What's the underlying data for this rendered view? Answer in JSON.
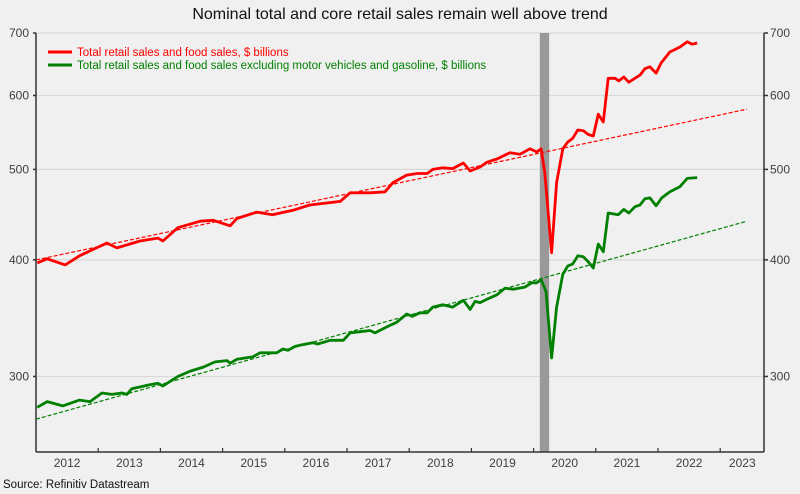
{
  "chart_data": {
    "type": "line",
    "title": "Nominal total and core retail sales remain well above trend",
    "source": "Source: Refinitiv Datastream",
    "y_scale": "log",
    "ylim": [
      249,
      700
    ],
    "y_ticks": [
      300,
      400,
      500,
      600,
      700
    ],
    "y_tick_labels": [
      "300",
      "400",
      "500",
      "600",
      "700"
    ],
    "y_axes": [
      "left",
      "right"
    ],
    "xlim": [
      2012.0,
      2023.71
    ],
    "x_tick_labels": [
      "2012",
      "2013",
      "2014",
      "2015",
      "2016",
      "2017",
      "2018",
      "2019",
      "2020",
      "2021",
      "2022",
      "2023"
    ],
    "grid": "horizontal",
    "legend_position": "top-left",
    "recession_shading": {
      "start": 2020.1,
      "end": 2020.25,
      "color": "#999999"
    },
    "series": [
      {
        "name": "Total retail sales and food sales, $ billions",
        "color": "#ff0000",
        "style": "solid",
        "x": [
          2012.02,
          2012.18,
          2012.47,
          2012.7,
          2013.14,
          2013.3,
          2013.67,
          2013.96,
          2014.04,
          2014.28,
          2014.64,
          2014.85,
          2015.12,
          2015.23,
          2015.55,
          2015.8,
          2016.13,
          2016.4,
          2016.89,
          2017.05,
          2017.37,
          2017.61,
          2017.74,
          2017.96,
          2018.13,
          2018.29,
          2018.38,
          2018.54,
          2018.7,
          2018.87,
          2018.98,
          2019.14,
          2019.25,
          2019.41,
          2019.62,
          2019.78,
          2019.94,
          2020.05,
          2020.12,
          2020.18,
          2020.29,
          2020.37,
          2020.47,
          2020.55,
          2020.63,
          2020.71,
          2020.8,
          2020.88,
          2020.96,
          2021.04,
          2021.12,
          2021.2,
          2021.31,
          2021.37,
          2021.45,
          2021.53,
          2021.71,
          2021.79,
          2021.87,
          2021.97,
          2022.05,
          2022.19,
          2022.35,
          2022.47,
          2022.55,
          2022.63
        ],
        "values": [
          397,
          401,
          395,
          404,
          417,
          412,
          419,
          422,
          419,
          433,
          440,
          441,
          435,
          443,
          450,
          447,
          452,
          458,
          462,
          472,
          472,
          473,
          484,
          493,
          495,
          495,
          500,
          502,
          501,
          508,
          498,
          503,
          509,
          513,
          521,
          519,
          526,
          522,
          526,
          496,
          407,
          484,
          526,
          535,
          540,
          551,
          550,
          545,
          543,
          573,
          562,
          626,
          626,
          622,
          628,
          620,
          631,
          641,
          644,
          634,
          650,
          668,
          676,
          685,
          681,
          683
        ]
      },
      {
        "name": "Total retail sales and food sales excluding motor vehicles and gasoline, $ billions",
        "color": "#008000",
        "style": "solid",
        "x": [
          2012.02,
          2012.18,
          2012.43,
          2012.7,
          2012.87,
          2013.06,
          2013.22,
          2013.38,
          2013.46,
          2013.54,
          2013.83,
          2013.96,
          2014.04,
          2014.28,
          2014.48,
          2014.69,
          2014.88,
          2015.07,
          2015.12,
          2015.23,
          2015.49,
          2015.6,
          2015.87,
          2015.97,
          2016.05,
          2016.16,
          2016.24,
          2016.45,
          2016.53,
          2016.73,
          2016.94,
          2017.05,
          2017.21,
          2017.37,
          2017.45,
          2017.64,
          2017.8,
          2017.96,
          2018.05,
          2018.17,
          2018.29,
          2018.38,
          2018.54,
          2018.7,
          2018.87,
          2018.98,
          2019.06,
          2019.14,
          2019.25,
          2019.41,
          2019.54,
          2019.67,
          2019.86,
          2019.97,
          2020.05,
          2020.12,
          2020.2,
          2020.29,
          2020.37,
          2020.47,
          2020.55,
          2020.63,
          2020.71,
          2020.8,
          2020.88,
          2020.96,
          2021.04,
          2021.12,
          2021.2,
          2021.36,
          2021.45,
          2021.53,
          2021.63,
          2021.71,
          2021.79,
          2021.87,
          2021.97,
          2022.06,
          2022.19,
          2022.35,
          2022.47,
          2022.63
        ],
        "values": [
          278,
          282,
          279,
          283,
          282,
          288,
          287,
          288,
          287,
          291,
          294,
          295,
          293,
          300,
          304,
          307,
          311,
          312,
          310,
          313,
          315,
          318,
          318,
          321,
          320,
          323,
          324,
          326,
          325,
          328,
          328,
          334,
          335,
          336,
          334,
          339,
          343,
          350,
          348,
          351,
          351,
          356,
          358,
          356,
          362,
          354,
          361,
          360,
          363,
          367,
          373,
          372,
          374,
          378,
          378,
          381,
          370,
          314,
          356,
          386,
          394,
          396,
          404,
          403,
          398,
          392,
          416,
          408,
          449,
          447,
          453,
          449,
          456,
          458,
          465,
          466,
          457,
          466,
          473,
          479,
          489,
          490
        ]
      },
      {
        "name": "",
        "color": "#ff0000",
        "style": "dashed",
        "x": [
          2012.0,
          2023.43
        ],
        "values": [
          400,
          580
        ]
      },
      {
        "name": "",
        "color": "#008000",
        "style": "dashed",
        "x": [
          2012.0,
          2023.43
        ],
        "values": [
          270,
          440
        ]
      }
    ]
  }
}
